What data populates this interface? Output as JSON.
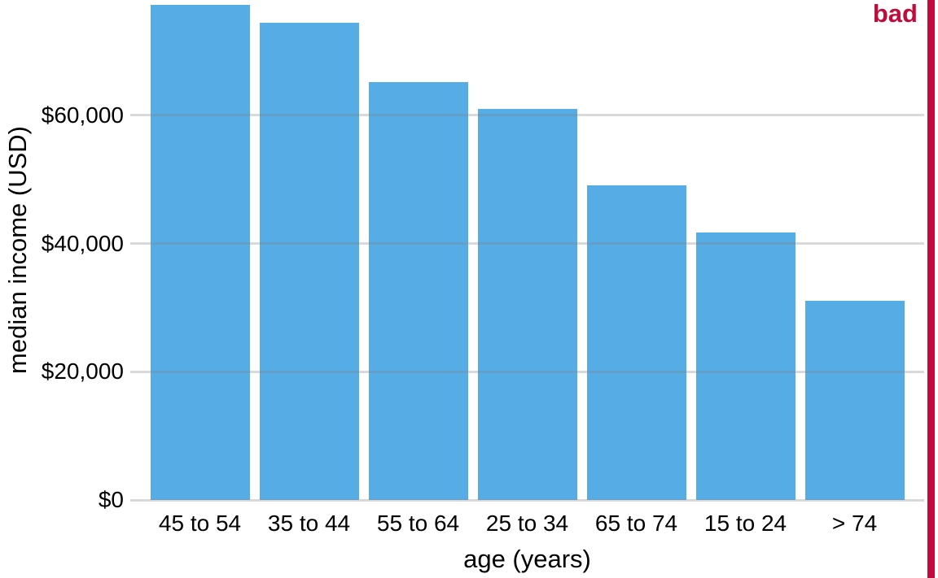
{
  "stamp": {
    "label": "bad",
    "color": "#C10B3C"
  },
  "chart_data": {
    "type": "bar",
    "title": "",
    "xlabel": "age (years)",
    "ylabel": "median income (USD)",
    "categories": [
      "45 to 54",
      "35 to 44",
      "55 to 64",
      "25 to 34",
      "65 to 74",
      "15 to 24",
      "> 74"
    ],
    "values": [
      77200,
      74500,
      65200,
      61000,
      49100,
      41700,
      31100
    ],
    "ylim": [
      0,
      78000
    ],
    "yticks": [
      {
        "value": 0,
        "label": "$0"
      },
      {
        "value": 20000,
        "label": "$20,000"
      },
      {
        "value": 40000,
        "label": "$40,000"
      },
      {
        "value": 60000,
        "label": "$60,000"
      }
    ],
    "bar_color": "#56ACE4",
    "gridline_color": "#D9D9D9",
    "text_color": "#000000",
    "grid": "horizontal gridlines drawn over bars",
    "legend": "none",
    "note": "bars sorted by descending value"
  }
}
